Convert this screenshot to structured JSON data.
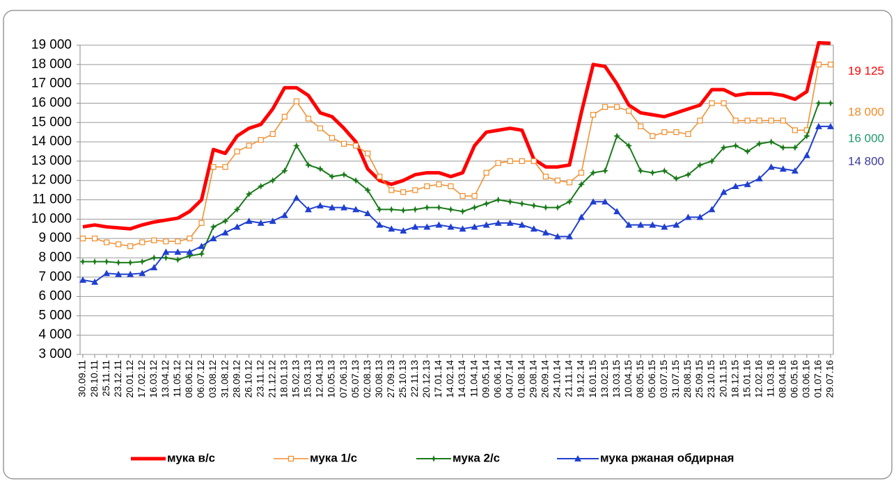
{
  "chart_data": {
    "type": "line",
    "categories": [
      "30.09.11",
      "28.10.11",
      "25.11.11",
      "23.12.11",
      "20.01.12",
      "17.02.12",
      "16.03.12",
      "13.04.12",
      "11.05.12",
      "08.06.12",
      "06.07.12",
      "03.08.12",
      "31.08.12",
      "28.09.12",
      "26.10.12",
      "23.11.12",
      "21.12.12",
      "18.01.13",
      "15.02.13",
      "15.03.13",
      "12.04.13",
      "10.05.13",
      "07.06.13",
      "05.07.13",
      "02.08.13",
      "30.08.13",
      "27.09.13",
      "25.10.13",
      "22.11.13",
      "20.12.13",
      "17.01.14",
      "14.02.14",
      "14.03.14",
      "11.04.14",
      "09.05.14",
      "06.06.14",
      "04.07.14",
      "01.08.14",
      "29.08.14",
      "26.09.14",
      "24.10.14",
      "21.11.14",
      "19.12.14",
      "16.01.15",
      "13.02.15",
      "13.03.15",
      "10.04.15",
      "08.05.15",
      "05.06.15",
      "03.07.15",
      "31.07.15",
      "28.08.15",
      "25.09.15",
      "23.10.15",
      "20.11.15",
      "18.12.15",
      "15.01.16",
      "12.02.16",
      "11.03.16",
      "08.04.16",
      "06.05.16",
      "03.06.16",
      "01.07.16",
      "29.07.16"
    ],
    "series": [
      {
        "name": "мука в/с",
        "color": "#ff0000",
        "marker": "none",
        "width": 5,
        "values": [
          9600,
          9700,
          9600,
          9550,
          9500,
          9700,
          9850,
          9950,
          10050,
          10400,
          11000,
          13600,
          13400,
          14300,
          14700,
          14900,
          15700,
          16800,
          16800,
          16400,
          15500,
          15300,
          14700,
          14000,
          12600,
          12000,
          11800,
          12000,
          12300,
          12400,
          12400,
          12200,
          12400,
          13800,
          14500,
          14600,
          14700,
          14600,
          13100,
          12700,
          12700,
          12800,
          15500,
          18000,
          17900,
          17000,
          15900,
          15500,
          15400,
          15300,
          15500,
          15700,
          15900,
          16700,
          16700,
          16400,
          16500,
          16500,
          16500,
          16400,
          16200,
          16600,
          19125,
          19100
        ]
      },
      {
        "name": "мука 1/с",
        "color": "#f08c28",
        "marker": "square",
        "width": 1.5,
        "values": [
          9000,
          9000,
          8800,
          8700,
          8600,
          8800,
          8900,
          8850,
          8850,
          9000,
          9800,
          12700,
          12700,
          13500,
          13800,
          14100,
          14400,
          15300,
          16100,
          15200,
          14700,
          14200,
          13900,
          13800,
          13400,
          12200,
          11500,
          11400,
          11500,
          11700,
          11800,
          11700,
          11200,
          11200,
          12400,
          12900,
          13000,
          13000,
          13000,
          12200,
          12000,
          11900,
          12400,
          15400,
          15800,
          15800,
          15600,
          14800,
          14300,
          14500,
          14500,
          14400,
          15100,
          16000,
          16000,
          15100,
          15100,
          15100,
          15100,
          15100,
          14600,
          14600,
          18000,
          18000
        ]
      },
      {
        "name": "мука 2/с",
        "color": "#1a7a1a",
        "marker": "star",
        "width": 2,
        "values": [
          7800,
          7800,
          7800,
          7750,
          7750,
          7800,
          8000,
          8000,
          7900,
          8100,
          8200,
          9600,
          9900,
          10500,
          11300,
          11700,
          12000,
          12500,
          13800,
          12800,
          12600,
          12200,
          12300,
          12000,
          11500,
          10500,
          10500,
          10450,
          10500,
          10600,
          10600,
          10500,
          10400,
          10600,
          10800,
          11000,
          10900,
          10800,
          10700,
          10600,
          10600,
          10900,
          11800,
          12400,
          12500,
          14300,
          13800,
          12500,
          12400,
          12500,
          12100,
          12300,
          12800,
          13000,
          13700,
          13800,
          13500,
          13900,
          14000,
          13700,
          13700,
          14300,
          16000,
          16000
        ]
      },
      {
        "name": "мука ржаная обдирная",
        "color": "#1f3fd0",
        "marker": "triangle",
        "width": 2,
        "values": [
          6850,
          6750,
          7200,
          7150,
          7150,
          7200,
          7500,
          8300,
          8300,
          8300,
          8600,
          9000,
          9300,
          9600,
          9900,
          9800,
          9900,
          10200,
          11100,
          10500,
          10700,
          10600,
          10600,
          10500,
          10300,
          9700,
          9500,
          9400,
          9600,
          9600,
          9700,
          9600,
          9500,
          9600,
          9700,
          9800,
          9800,
          9700,
          9500,
          9300,
          9100,
          9100,
          10100,
          10900,
          10900,
          10400,
          9700,
          9700,
          9700,
          9600,
          9700,
          10100,
          10100,
          10500,
          11400,
          11700,
          11800,
          12100,
          12700,
          12600,
          12500,
          13300,
          14800,
          14800
        ]
      }
    ],
    "ylim": [
      3000,
      19000
    ],
    "yticks": [
      {
        "value": 3000,
        "label": "3 000"
      },
      {
        "value": 4000,
        "label": "4 000"
      },
      {
        "value": 5000,
        "label": "5 000"
      },
      {
        "value": 6000,
        "label": "6 000"
      },
      {
        "value": 7000,
        "label": "7 000"
      },
      {
        "value": 8000,
        "label": "8 000"
      },
      {
        "value": 9000,
        "label": "9 000"
      },
      {
        "value": 10000,
        "label": "10 000"
      },
      {
        "value": 11000,
        "label": "11 000"
      },
      {
        "value": 12000,
        "label": "12 000"
      },
      {
        "value": 13000,
        "label": "13 000"
      },
      {
        "value": 14000,
        "label": "14 000"
      },
      {
        "value": 15000,
        "label": "15 000"
      },
      {
        "value": 16000,
        "label": "16 000"
      },
      {
        "value": 17000,
        "label": "17 000"
      },
      {
        "value": 18000,
        "label": "18 000"
      },
      {
        "value": 19000,
        "label": "19 000"
      }
    ],
    "grid": true,
    "legend": "bottom",
    "annotations": [
      {
        "text": "19 125",
        "color": "#ff0000"
      },
      {
        "text": "18 000",
        "color": "#f08c28"
      },
      {
        "text": "16 000",
        "color": "#1e9a6a"
      },
      {
        "text": "14 800",
        "color": "#3a3a9a"
      }
    ]
  }
}
